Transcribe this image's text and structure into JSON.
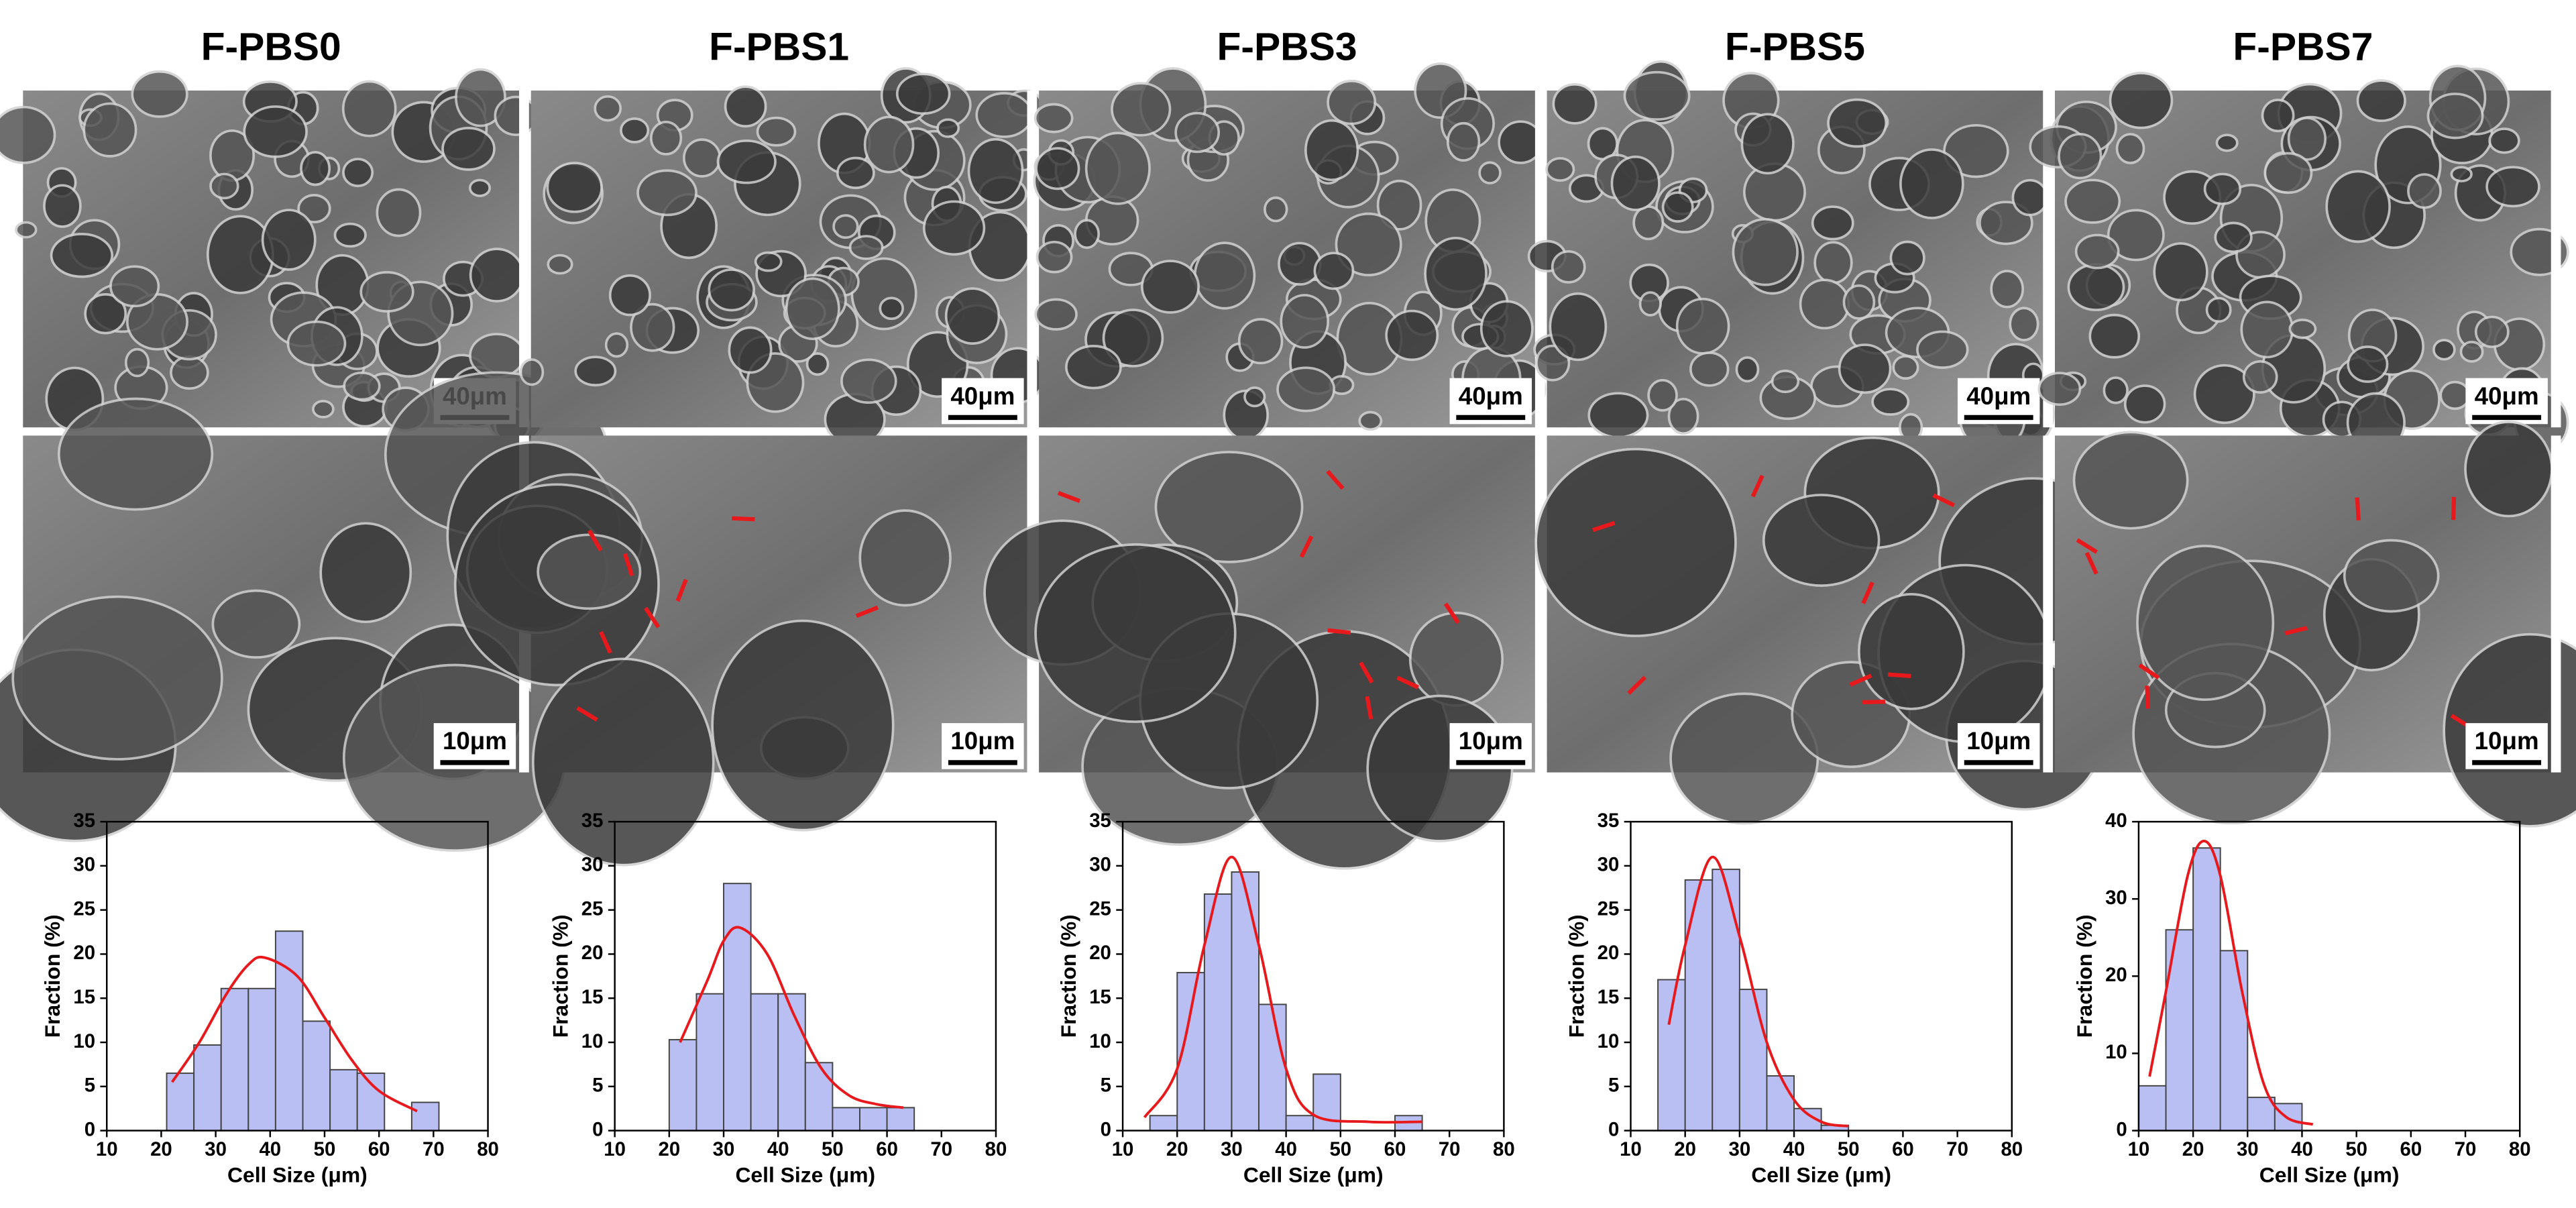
{
  "chart_data": [
    {
      "type": "histogram",
      "title": "F-PBS0",
      "scale_bars": [
        "40μm",
        "10μm"
      ],
      "xlabel": "Cell Size (μm)",
      "ylabel": "Fraction (%)",
      "xlim": [
        10,
        80
      ],
      "xticks": [
        10,
        20,
        30,
        40,
        50,
        60,
        70,
        80
      ],
      "ylim": [
        0,
        35
      ],
      "yticks": [
        0,
        5,
        10,
        15,
        20,
        25,
        30,
        35
      ],
      "color": "#b9bff2",
      "bins": [
        21,
        26,
        31,
        36,
        41,
        46,
        51,
        56,
        61,
        66,
        71
      ],
      "values": [
        6.5,
        9.7,
        16.1,
        16.1,
        22.6,
        12.4,
        6.9,
        6.5,
        0,
        3.2
      ],
      "fit": {
        "color": "#e8191c",
        "x": [
          22,
          27,
          32,
          36,
          39,
          45,
          50,
          55,
          60,
          67
        ],
        "values": [
          5.5,
          10,
          15.5,
          18.8,
          19.6,
          17.5,
          12.8,
          8,
          4.5,
          2.2
        ]
      }
    },
    {
      "type": "histogram",
      "title": "F-PBS1",
      "scale_bars": [
        "40μm",
        "10μm"
      ],
      "xlabel": "Cell Size (μm)",
      "ylabel": "Fraction (%)",
      "xlim": [
        10,
        80
      ],
      "xticks": [
        10,
        20,
        30,
        40,
        50,
        60,
        70,
        80
      ],
      "ylim": [
        0,
        35
      ],
      "yticks": [
        0,
        5,
        10,
        15,
        20,
        25,
        30,
        35
      ],
      "color": "#b9bff2",
      "bins": [
        20,
        25,
        30,
        35,
        40,
        45,
        50,
        55,
        60,
        65
      ],
      "values": [
        10.3,
        15.5,
        28,
        15.5,
        15.5,
        7.7,
        2.6,
        2.6,
        2.6
      ],
      "fit": {
        "color": "#e8191c",
        "x": [
          22,
          27,
          30,
          33,
          38,
          43,
          48,
          53,
          58,
          63
        ],
        "values": [
          10,
          17,
          21.5,
          23,
          20,
          13,
          7,
          4,
          3,
          2.6
        ]
      }
    },
    {
      "type": "histogram",
      "title": "F-PBS3",
      "scale_bars": [
        "40μm",
        "10μm"
      ],
      "xlabel": "Cell Size (μm)",
      "ylabel": "Fraction (%)",
      "xlim": [
        10,
        80
      ],
      "xticks": [
        10,
        20,
        30,
        40,
        50,
        60,
        70,
        80
      ],
      "ylim": [
        0,
        35
      ],
      "yticks": [
        0,
        5,
        10,
        15,
        20,
        25,
        30,
        35
      ],
      "color": "#b9bff2",
      "bins": [
        15,
        20,
        25,
        30,
        35,
        40,
        45,
        50,
        55,
        60,
        65
      ],
      "values": [
        1.7,
        17.9,
        26.8,
        29.3,
        14.3,
        1.7,
        6.4,
        0,
        0,
        1.7
      ],
      "fit": {
        "color": "#e8191c",
        "x": [
          14,
          20,
          25,
          30,
          35,
          40,
          45,
          55,
          65
        ],
        "values": [
          1.5,
          7,
          21,
          31,
          21,
          7,
          1.8,
          1,
          1
        ]
      }
    },
    {
      "type": "histogram",
      "title": "F-PBS5",
      "scale_bars": [
        "40μm",
        "10μm"
      ],
      "xlabel": "Cell Size (μm)",
      "ylabel": "Fraction (%)",
      "xlim": [
        10,
        80
      ],
      "xticks": [
        10,
        20,
        30,
        40,
        50,
        60,
        70,
        80
      ],
      "ylim": [
        0,
        35
      ],
      "yticks": [
        0,
        5,
        10,
        15,
        20,
        25,
        30,
        35
      ],
      "color": "#b9bff2",
      "bins": [
        15,
        20,
        25,
        30,
        35,
        40,
        45,
        50
      ],
      "values": [
        17.1,
        28.4,
        29.6,
        16,
        6.2,
        2.5,
        0.6
      ],
      "fit": {
        "color": "#e8191c",
        "x": [
          17,
          20,
          25,
          30,
          35,
          40,
          45,
          50
        ],
        "values": [
          12,
          21,
          31,
          22,
          10,
          3.5,
          1,
          0.5
        ]
      }
    },
    {
      "type": "histogram",
      "title": "F-PBS7",
      "scale_bars": [
        "40μm",
        "10μm"
      ],
      "xlabel": "Cell Size (μm)",
      "ylabel": "Fraction (%)",
      "xlim": [
        10,
        80
      ],
      "xticks": [
        10,
        20,
        30,
        40,
        50,
        60,
        70,
        80
      ],
      "ylim": [
        0,
        40
      ],
      "yticks": [
        0,
        10,
        20,
        30,
        40
      ],
      "color": "#b9bff2",
      "bins": [
        10,
        15,
        20,
        25,
        30,
        35,
        40
      ],
      "values": [
        5.8,
        26,
        36.6,
        23.3,
        4.3,
        3.5
      ],
      "fit": {
        "color": "#e8191c",
        "x": [
          12,
          15,
          19,
          22,
          25,
          29,
          33,
          37,
          42
        ],
        "values": [
          7,
          18,
          33,
          37.5,
          33,
          18,
          6,
          1.8,
          0.8
        ]
      }
    }
  ]
}
